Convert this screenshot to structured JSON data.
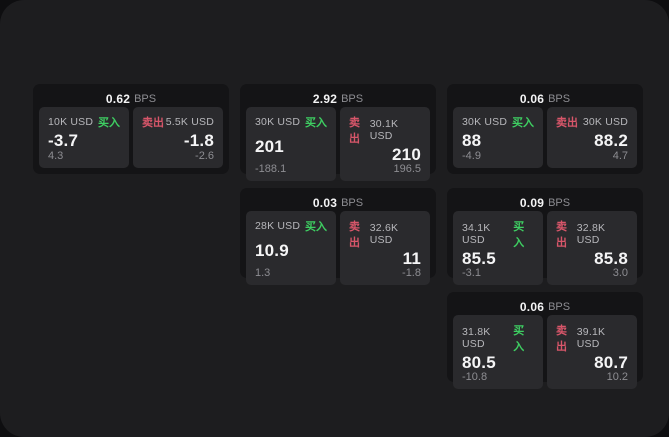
{
  "labels": {
    "bps_unit": "BPS",
    "buy": "买入",
    "sell": "卖出"
  },
  "colors": {
    "buy_green": "#3ecf62",
    "sell_red": "#d8566a",
    "panel_bg": "#1d1d1f",
    "card_bg": "#141416",
    "tile_bg": "#2a2a2d"
  },
  "cards": [
    {
      "bps": "0.62",
      "left": {
        "amount": "10K USD",
        "price": "-3.7",
        "delta": "4.3"
      },
      "right": {
        "amount": "5.5K USD",
        "price": "-1.8",
        "delta": "-2.6"
      }
    },
    {
      "bps": "2.92",
      "left": {
        "amount": "30K USD",
        "price": "201",
        "delta": "-188.1"
      },
      "right": {
        "amount": "30.1K USD",
        "price": "210",
        "delta": "196.5"
      }
    },
    {
      "bps": "0.06",
      "left": {
        "amount": "30K USD",
        "price": "88",
        "delta": "-4.9"
      },
      "right": {
        "amount": "30K USD",
        "price": "88.2",
        "delta": "4.7"
      }
    },
    {
      "bps": "0.03",
      "left": {
        "amount": "28K USD",
        "price": "10.9",
        "delta": "1.3"
      },
      "right": {
        "amount": "32.6K USD",
        "price": "11",
        "delta": "-1.8"
      }
    },
    {
      "bps": "0.09",
      "left": {
        "amount": "34.1K USD",
        "price": "85.5",
        "delta": "-3.1"
      },
      "right": {
        "amount": "32.8K USD",
        "price": "85.8",
        "delta": "3.0"
      }
    },
    {
      "bps": "0.06",
      "left": {
        "amount": "31.8K USD",
        "price": "80.5",
        "delta": "-10.8"
      },
      "right": {
        "amount": "39.1K USD",
        "price": "80.7",
        "delta": "10.2"
      }
    }
  ]
}
